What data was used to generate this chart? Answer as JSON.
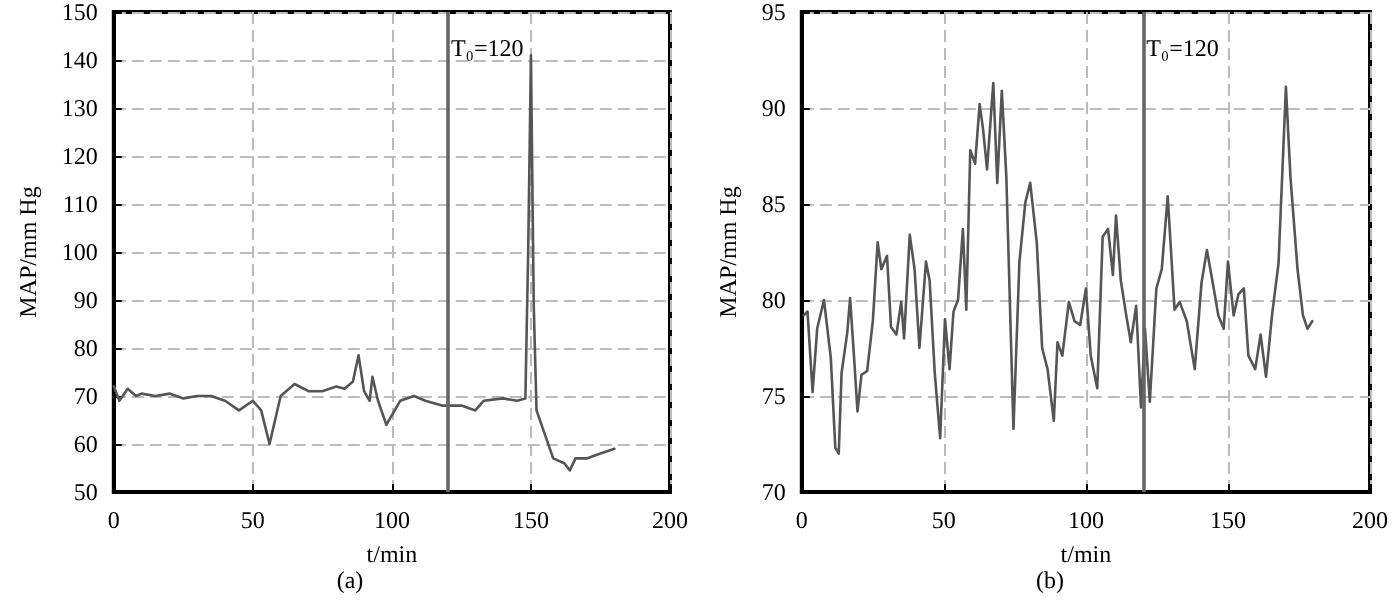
{
  "chart_data": [
    {
      "type": "line",
      "title": "(a)",
      "xlabel": "t/min",
      "ylabel": "MAP/mm Hg",
      "xlim": [
        0,
        200
      ],
      "xticks": [
        0,
        50,
        100,
        150,
        200
      ],
      "ylim": [
        50,
        150
      ],
      "yticks": [
        50,
        60,
        70,
        80,
        90,
        100,
        110,
        120,
        130,
        140,
        150
      ],
      "grid": true,
      "marker": "none",
      "line_style": "solid",
      "ref_lines": [
        {
          "axis": "x",
          "value": 120,
          "label": "T₀=120",
          "color": "#666666"
        }
      ],
      "series": [
        {
          "color": "#555555",
          "x": [
            0,
            2,
            5,
            8,
            10,
            15,
            20,
            25,
            30,
            35,
            40,
            45,
            50,
            53,
            56,
            58,
            60,
            65,
            70,
            75,
            80,
            83,
            86,
            88,
            90,
            92,
            93,
            95,
            98,
            100,
            103,
            108,
            112,
            118,
            125,
            130,
            133,
            140,
            145,
            148,
            149,
            150,
            151,
            152,
            155,
            158,
            162,
            164,
            166,
            170,
            175,
            180
          ],
          "values": [
            72,
            69,
            71.5,
            70,
            70.5,
            70,
            70.5,
            69.5,
            70,
            70,
            69,
            67,
            69,
            67,
            60,
            65,
            70,
            72.5,
            71,
            71,
            72,
            71.5,
            73,
            78.5,
            71,
            69,
            74,
            69,
            64,
            66,
            69,
            70,
            69,
            68,
            68,
            67,
            69,
            69.5,
            69,
            69.5,
            100,
            141,
            89,
            67,
            62,
            57,
            56,
            54.5,
            57,
            57,
            58,
            59
          ]
        }
      ]
    },
    {
      "type": "line",
      "title": "(b)",
      "xlabel": "t/min",
      "ylabel": "MAP/mm Hg",
      "xlim": [
        0,
        200
      ],
      "xticks": [
        0,
        50,
        100,
        150,
        200
      ],
      "ylim": [
        70,
        95
      ],
      "yticks": [
        70,
        75,
        80,
        85,
        90,
        95
      ],
      "grid": true,
      "marker": "none",
      "line_style": "solid",
      "ref_lines": [
        {
          "axis": "x",
          "value": 120,
          "label": "T₀=120",
          "color": "#666666"
        }
      ],
      "series": [
        {
          "color": "#555555",
          "x": [
            0.7,
            2,
            3.8,
            5.4,
            7.8,
            10.2,
            11.8,
            13,
            14,
            16,
            17,
            18.4,
            19.6,
            21,
            23,
            25,
            26.7,
            28,
            30,
            31.4,
            33.3,
            35,
            36,
            38,
            39.7,
            41.4,
            43.7,
            45,
            46.8,
            48.7,
            50.4,
            52,
            53.4,
            55,
            56.7,
            57.9,
            59.3,
            61,
            62.6,
            63.8,
            65.2,
            67.4,
            68.8,
            70.4,
            72,
            74.5,
            76.6,
            78.7,
            80.4,
            82.7,
            84.6,
            86.5,
            88.7,
            90,
            91.7,
            94,
            96,
            98,
            100,
            101.7,
            104,
            105.9,
            107.8,
            109.5,
            110.6,
            112.3,
            114.2,
            115.8,
            117.7,
            119.4,
            120.8,
            122.5,
            124.8,
            126.7,
            128.8,
            131.2,
            133,
            135.5,
            138.3,
            140.7,
            142.6,
            145,
            146.6,
            148.5,
            150,
            152,
            153.7,
            155.6,
            157.2,
            159.6,
            161.5,
            163.4,
            165.5,
            167.8,
            170.4,
            172,
            174.5,
            176.4,
            178,
            179.7
          ],
          "values": [
            79.2,
            79.4,
            75.2,
            78.5,
            80,
            77,
            72.3,
            72,
            76.2,
            78.3,
            80.1,
            77,
            74.2,
            76.1,
            76.3,
            78.9,
            83,
            81.6,
            82.3,
            78.6,
            78.2,
            79.9,
            78,
            83.4,
            81.6,
            77.5,
            82,
            81,
            76.2,
            72.8,
            79,
            76.4,
            79.4,
            80,
            83.7,
            79.5,
            87.8,
            87.1,
            90.2,
            88.9,
            86.8,
            91.3,
            86.1,
            90.9,
            86.4,
            73.3,
            82,
            85.1,
            86.1,
            83,
            77.5,
            76.4,
            73.7,
            77.8,
            77.1,
            79.9,
            78.9,
            78.7,
            80.6,
            77.1,
            75.4,
            83.3,
            83.7,
            81.3,
            84.4,
            81,
            79.2,
            77.8,
            79.7,
            74.4,
            78.5,
            74.7,
            80.6,
            81.6,
            85.4,
            79.5,
            79.9,
            78.9,
            76.4,
            80.9,
            82.6,
            80.6,
            79.2,
            78.5,
            82,
            79.2,
            80.3,
            80.6,
            77.1,
            76.4,
            78.2,
            76,
            79.2,
            81.9,
            91.1,
            86.4,
            81.6,
            79.2,
            78.5,
            78.9
          ]
        }
      ]
    }
  ]
}
